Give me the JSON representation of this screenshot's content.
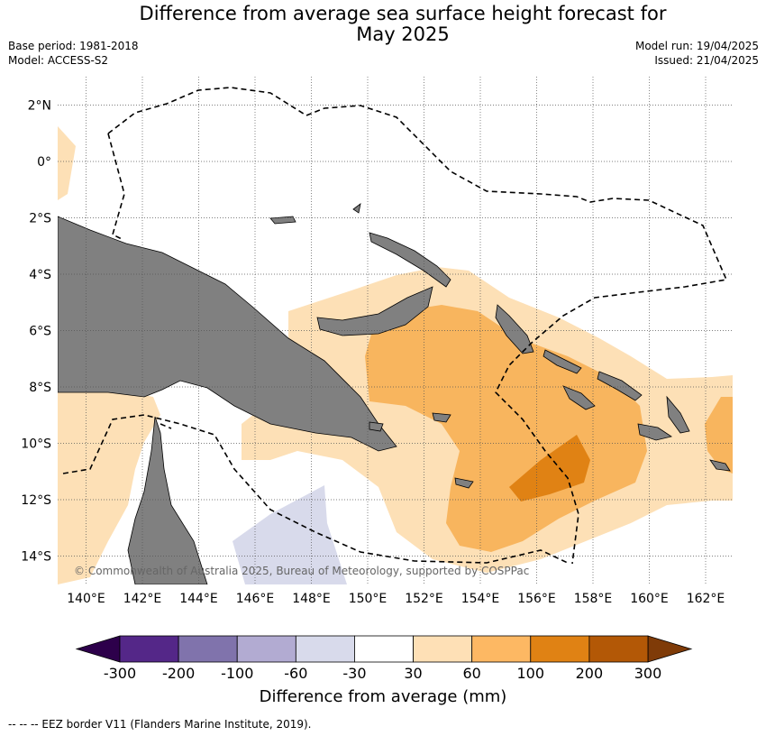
{
  "header": {
    "title_line1": "Difference from average sea surface height forecast for",
    "title_line2": "May 2025",
    "base_period": "Base period: 1981-2018",
    "model": "Model: ACCESS-S2",
    "model_run": "Model run: 19/04/2025",
    "issued": "Issued: 21/04/2025"
  },
  "map": {
    "lon_labels": [
      "140°E",
      "142°E",
      "144°E",
      "146°E",
      "148°E",
      "150°E",
      "152°E",
      "154°E",
      "156°E",
      "158°E",
      "160°E",
      "162°E"
    ],
    "lat_labels": [
      "2°N",
      "0°",
      "2°S",
      "4°S",
      "6°S",
      "8°S",
      "10°S",
      "12°S",
      "14°S"
    ],
    "copyright": "© Commonwealth of Australia 2025, Bureau of Meteorology, supported by COSPPac",
    "colors": {
      "land": "#808080",
      "level_30_60": "#fde0b6",
      "level_60_100": "#f8b55e",
      "level_100_200": "#e08214",
      "level_-60_-30": "#d8daeb"
    }
  },
  "colorbar": {
    "ticks": [
      "-300",
      "-200",
      "-100",
      "-60",
      "-30",
      "30",
      "60",
      "100",
      "200",
      "300"
    ],
    "colors": [
      "#542788",
      "#8073ac",
      "#b2abd2",
      "#d8daeb",
      "#ffffff",
      "#fee0b6",
      "#fdb863",
      "#e08214",
      "#b35806"
    ],
    "under_color": "#2d004b",
    "over_color": "#7f3b08",
    "label": "Difference from average (mm)"
  },
  "footnote": "--  --  -- EEZ border V11 (Flanders Marine Institute, 2019)."
}
